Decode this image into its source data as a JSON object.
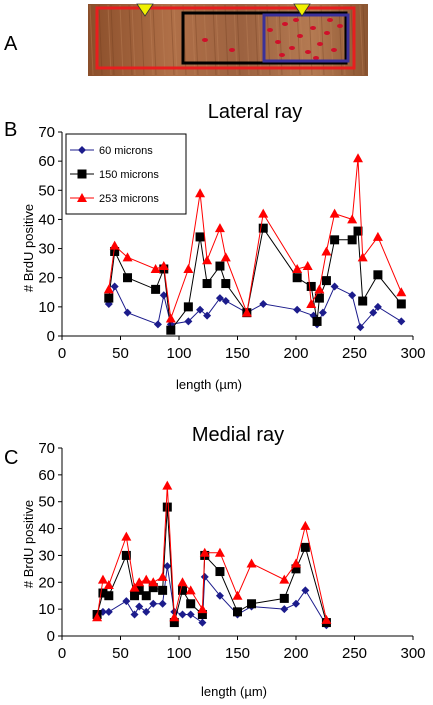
{
  "panels": {
    "a_label": "A",
    "b_label": "B",
    "c_label": "C"
  },
  "colors": {
    "s60": "#1c1c8c",
    "s150": "#000000",
    "s253": "#ff0000",
    "box_red": "#e81e1e",
    "box_black": "#000000",
    "box_blue": "#3b3199",
    "arrow": "#f0f000"
  },
  "chart_data": [
    {
      "type": "line",
      "title": "Lateral ray",
      "xlabel": "length (µm)",
      "ylabel": "# BrdU positive",
      "xlim": [
        0,
        300
      ],
      "ylim": [
        0,
        70
      ],
      "xticks": [
        0,
        50,
        100,
        150,
        200,
        250,
        300
      ],
      "yticks": [
        0,
        10,
        20,
        30,
        40,
        50,
        60,
        70
      ],
      "grid": false,
      "legend": "top-left",
      "series": [
        {
          "name": "60 microns",
          "marker": "diamond",
          "color": "#1c1c8c",
          "points": [
            [
              40,
              11
            ],
            [
              45,
              17
            ],
            [
              56,
              8
            ],
            [
              82,
              4
            ],
            [
              87,
              14
            ],
            [
              93,
              4
            ],
            [
              108,
              5
            ],
            [
              118,
              9
            ],
            [
              124,
              7
            ],
            [
              135,
              13
            ],
            [
              140,
              12
            ],
            [
              158,
              8
            ],
            [
              172,
              11
            ],
            [
              201,
              9
            ],
            [
              215,
              7
            ],
            [
              218,
              4
            ],
            [
              223,
              8
            ],
            [
              233,
              17
            ],
            [
              248,
              14
            ],
            [
              255,
              3
            ],
            [
              266,
              8
            ],
            [
              270,
              10
            ],
            [
              290,
              5
            ]
          ]
        },
        {
          "name": "150 microns",
          "marker": "square",
          "color": "#000000",
          "points": [
            [
              40,
              13
            ],
            [
              45,
              29
            ],
            [
              56,
              20
            ],
            [
              80,
              16
            ],
            [
              87,
              23
            ],
            [
              93,
              2
            ],
            [
              108,
              10
            ],
            [
              118,
              34
            ],
            [
              124,
              18
            ],
            [
              135,
              24
            ],
            [
              140,
              18
            ],
            [
              158,
              8
            ],
            [
              172,
              37
            ],
            [
              201,
              20
            ],
            [
              213,
              17
            ],
            [
              218,
              5
            ],
            [
              220,
              13
            ],
            [
              226,
              19
            ],
            [
              233,
              33
            ],
            [
              248,
              33
            ],
            [
              253,
              36
            ],
            [
              257,
              12
            ],
            [
              270,
              21
            ],
            [
              290,
              11
            ]
          ]
        },
        {
          "name": "253 microns",
          "marker": "triangle",
          "color": "#ff0000",
          "points": [
            [
              40,
              16
            ],
            [
              45,
              31
            ],
            [
              56,
              27
            ],
            [
              80,
              23
            ],
            [
              87,
              24
            ],
            [
              93,
              6
            ],
            [
              108,
              23
            ],
            [
              118,
              49
            ],
            [
              124,
              26
            ],
            [
              135,
              37
            ],
            [
              140,
              27
            ],
            [
              158,
              8
            ],
            [
              172,
              42
            ],
            [
              201,
              23
            ],
            [
              210,
              24
            ],
            [
              213,
              11
            ],
            [
              220,
              16
            ],
            [
              226,
              29
            ],
            [
              233,
              42
            ],
            [
              248,
              40
            ],
            [
              253,
              61
            ],
            [
              257,
              27
            ],
            [
              270,
              34
            ],
            [
              290,
              15
            ]
          ]
        }
      ]
    },
    {
      "type": "line",
      "title": "Medial ray",
      "xlabel": "length (µm)",
      "ylabel": "# BrdU positive",
      "xlim": [
        0,
        300
      ],
      "ylim": [
        0,
        70
      ],
      "xticks": [
        0,
        50,
        100,
        150,
        200,
        250,
        300
      ],
      "yticks": [
        0,
        10,
        20,
        30,
        40,
        50,
        60,
        70
      ],
      "grid": false,
      "legend": "none",
      "series": [
        {
          "name": "60 microns",
          "marker": "diamond",
          "color": "#1c1c8c",
          "points": [
            [
              30,
              8
            ],
            [
              35,
              9
            ],
            [
              40,
              9
            ],
            [
              55,
              13
            ],
            [
              62,
              8
            ],
            [
              66,
              11
            ],
            [
              72,
              9
            ],
            [
              78,
              12
            ],
            [
              86,
              12
            ],
            [
              90,
              26
            ],
            [
              96,
              9
            ],
            [
              103,
              8
            ],
            [
              110,
              8
            ],
            [
              120,
              5
            ],
            [
              122,
              22
            ],
            [
              135,
              15
            ],
            [
              150,
              8
            ],
            [
              162,
              11
            ],
            [
              190,
              10
            ],
            [
              200,
              12
            ],
            [
              208,
              17
            ],
            [
              226,
              4
            ]
          ]
        },
        {
          "name": "150 microns",
          "marker": "square",
          "color": "#000000",
          "points": [
            [
              30,
              8
            ],
            [
              35,
              16
            ],
            [
              40,
              15
            ],
            [
              55,
              30
            ],
            [
              62,
              15
            ],
            [
              66,
              17
            ],
            [
              72,
              15
            ],
            [
              78,
              18
            ],
            [
              86,
              17
            ],
            [
              90,
              48
            ],
            [
              96,
              5
            ],
            [
              103,
              17
            ],
            [
              110,
              12
            ],
            [
              120,
              8
            ],
            [
              122,
              30
            ],
            [
              135,
              24
            ],
            [
              150,
              9
            ],
            [
              162,
              12
            ],
            [
              190,
              14
            ],
            [
              200,
              25
            ],
            [
              208,
              33
            ],
            [
              226,
              5
            ]
          ]
        },
        {
          "name": "253 microns",
          "marker": "triangle",
          "color": "#ff0000",
          "points": [
            [
              30,
              7
            ],
            [
              35,
              21
            ],
            [
              40,
              19
            ],
            [
              55,
              37
            ],
            [
              62,
              18
            ],
            [
              66,
              20
            ],
            [
              72,
              21
            ],
            [
              78,
              20
            ],
            [
              86,
              22
            ],
            [
              90,
              56
            ],
            [
              96,
              7
            ],
            [
              103,
              20
            ],
            [
              110,
              17
            ],
            [
              120,
              10
            ],
            [
              122,
              31
            ],
            [
              135,
              31
            ],
            [
              150,
              15
            ],
            [
              162,
              27
            ],
            [
              190,
              21
            ],
            [
              200,
              27
            ],
            [
              208,
              41
            ],
            [
              226,
              6
            ]
          ]
        }
      ]
    }
  ]
}
